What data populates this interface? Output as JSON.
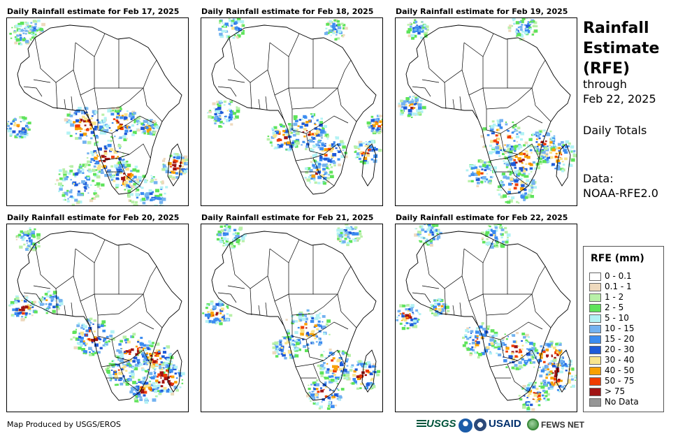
{
  "panels": [
    {
      "title": "Daily Rainfall estimate for Feb 17, 2025"
    },
    {
      "title": "Daily Rainfall estimate for Feb 18, 2025"
    },
    {
      "title": "Daily Rainfall estimate for Feb 19, 2025"
    },
    {
      "title": "Daily Rainfall estimate for Feb 20, 2025"
    },
    {
      "title": "Daily Rainfall estimate for Feb 21, 2025"
    },
    {
      "title": "Daily Rainfall estimate for Feb 22, 2025"
    }
  ],
  "sidebar": {
    "title_lines": [
      "Rainfall",
      "Estimate",
      "(RFE)"
    ],
    "through": "through",
    "date": "Feb 22, 2025",
    "totals": "Daily Totals",
    "data_label": "Data:",
    "data_source": "NOAA-RFE2.0"
  },
  "legend": {
    "title": "RFE (mm)",
    "items": [
      {
        "label": "0 - 0.1",
        "color": "#ffffff"
      },
      {
        "label": "0.1 - 1",
        "color": "#eed9bd"
      },
      {
        "label": "1 - 2",
        "color": "#b8f0a8"
      },
      {
        "label": "2 - 5",
        "color": "#5ee35a"
      },
      {
        "label": "5 - 10",
        "color": "#b2f2f4"
      },
      {
        "label": "10 - 15",
        "color": "#73b2f0"
      },
      {
        "label": "15 - 20",
        "color": "#3c8cf0"
      },
      {
        "label": "20 - 30",
        "color": "#1e5ad8"
      },
      {
        "label": "30 - 40",
        "color": "#f8e48c"
      },
      {
        "label": "40 - 50",
        "color": "#f8a000"
      },
      {
        "label": "50 - 75",
        "color": "#f03c00"
      },
      {
        "label": "> 75",
        "color": "#a01414"
      },
      {
        "label": "No Data",
        "color": "#969696"
      }
    ]
  },
  "footer": {
    "credit": "Map Produced by USGS/EROS",
    "logos": {
      "usgs": "USGS",
      "usaid": "USAID",
      "fews": "FEWS NET"
    }
  }
}
